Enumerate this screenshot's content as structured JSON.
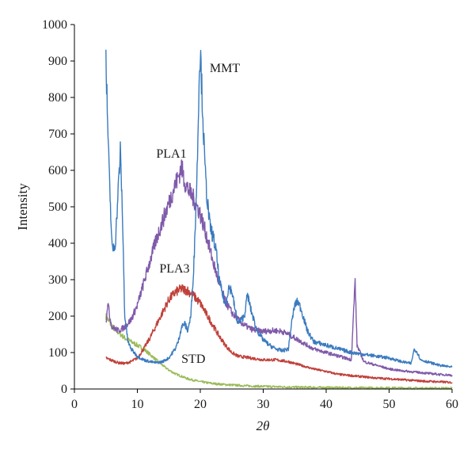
{
  "chart_data": {
    "type": "line",
    "title": "",
    "xlabel": "2θ",
    "ylabel": "Intensity",
    "xlim": [
      0,
      60
    ],
    "ylim": [
      0,
      1000
    ],
    "xticks": [
      0,
      10,
      20,
      30,
      40,
      50,
      60
    ],
    "yticks": [
      0,
      100,
      200,
      300,
      400,
      500,
      600,
      700,
      800,
      900,
      1000
    ],
    "grid": false,
    "legend": "none",
    "series": [
      {
        "name": "MMT",
        "color": "#3a7bbf",
        "points": [
          [
            5,
            900
          ],
          [
            5.5,
            600
          ],
          [
            6,
            380
          ],
          [
            6.5,
            400
          ],
          [
            7,
            560
          ],
          [
            7.3,
            650
          ],
          [
            7.6,
            500
          ],
          [
            8,
            200
          ],
          [
            8.5,
            130
          ],
          [
            9,
            110
          ],
          [
            10,
            90
          ],
          [
            11,
            80
          ],
          [
            12,
            75
          ],
          [
            13,
            72
          ],
          [
            14,
            75
          ],
          [
            15,
            85
          ],
          [
            16,
            110
          ],
          [
            16.5,
            130
          ],
          [
            17,
            170
          ],
          [
            17.5,
            180
          ],
          [
            18,
            160
          ],
          [
            18.5,
            200
          ],
          [
            19,
            350
          ],
          [
            19.5,
            600
          ],
          [
            19.8,
            850
          ],
          [
            20,
            930
          ],
          [
            20.3,
            800
          ],
          [
            20.7,
            620
          ],
          [
            21,
            540
          ],
          [
            21.5,
            450
          ],
          [
            22,
            420
          ],
          [
            22.5,
            380
          ],
          [
            23,
            300
          ],
          [
            23.5,
            260
          ],
          [
            24,
            230
          ],
          [
            24.5,
            280
          ],
          [
            25,
            270
          ],
          [
            25.5,
            220
          ],
          [
            26,
            180
          ],
          [
            27,
            200
          ],
          [
            27.5,
            260
          ],
          [
            28,
            220
          ],
          [
            29,
            160
          ],
          [
            30,
            135
          ],
          [
            31,
            120
          ],
          [
            32,
            110
          ],
          [
            33,
            105
          ],
          [
            34,
            110
          ],
          [
            34.5,
            180
          ],
          [
            35,
            230
          ],
          [
            35.5,
            240
          ],
          [
            36,
            220
          ],
          [
            37,
            160
          ],
          [
            38,
            130
          ],
          [
            40,
            120
          ],
          [
            42,
            110
          ],
          [
            44,
            100
          ],
          [
            46,
            95
          ],
          [
            48,
            90
          ],
          [
            50,
            85
          ],
          [
            52,
            75
          ],
          [
            53.5,
            70
          ],
          [
            54,
            110
          ],
          [
            54.5,
            100
          ],
          [
            55,
            80
          ],
          [
            57,
            70
          ],
          [
            58,
            65
          ],
          [
            60,
            60
          ]
        ]
      },
      {
        "name": "PLA1",
        "color": "#7f5aaa",
        "points": [
          [
            5,
            180
          ],
          [
            5.3,
            240
          ],
          [
            5.6,
            200
          ],
          [
            6,
            170
          ],
          [
            7,
            160
          ],
          [
            8,
            170
          ],
          [
            9,
            190
          ],
          [
            10,
            230
          ],
          [
            11,
            290
          ],
          [
            12,
            350
          ],
          [
            13,
            410
          ],
          [
            14,
            460
          ],
          [
            15,
            510
          ],
          [
            16,
            560
          ],
          [
            16.5,
            580
          ],
          [
            17,
            610
          ],
          [
            17.5,
            570
          ],
          [
            18,
            550
          ],
          [
            19,
            520
          ],
          [
            20,
            480
          ],
          [
            21,
            420
          ],
          [
            22,
            350
          ],
          [
            23,
            290
          ],
          [
            24,
            240
          ],
          [
            25,
            210
          ],
          [
            26,
            190
          ],
          [
            27,
            175
          ],
          [
            28,
            165
          ],
          [
            29,
            160
          ],
          [
            30,
            158
          ],
          [
            31,
            160
          ],
          [
            32,
            160
          ],
          [
            33,
            158
          ],
          [
            34,
            150
          ],
          [
            35,
            140
          ],
          [
            36,
            130
          ],
          [
            37,
            120
          ],
          [
            38,
            110
          ],
          [
            40,
            100
          ],
          [
            42,
            90
          ],
          [
            44,
            80
          ],
          [
            44.6,
            300
          ],
          [
            44.9,
            120
          ],
          [
            46,
            75
          ],
          [
            48,
            65
          ],
          [
            50,
            55
          ],
          [
            52,
            50
          ],
          [
            55,
            45
          ],
          [
            58,
            40
          ],
          [
            60,
            38
          ]
        ]
      },
      {
        "name": "PLA3",
        "color": "#c0403a",
        "points": [
          [
            5,
            85
          ],
          [
            6,
            78
          ],
          [
            7,
            72
          ],
          [
            8,
            70
          ],
          [
            9,
            75
          ],
          [
            10,
            85
          ],
          [
            11,
            110
          ],
          [
            12,
            140
          ],
          [
            13,
            175
          ],
          [
            14,
            210
          ],
          [
            15,
            245
          ],
          [
            16,
            265
          ],
          [
            17,
            275
          ],
          [
            18,
            270
          ],
          [
            19,
            255
          ],
          [
            20,
            235
          ],
          [
            21,
            205
          ],
          [
            22,
            175
          ],
          [
            23,
            145
          ],
          [
            24,
            120
          ],
          [
            25,
            100
          ],
          [
            26,
            90
          ],
          [
            28,
            85
          ],
          [
            30,
            80
          ],
          [
            32,
            80
          ],
          [
            34,
            75
          ],
          [
            36,
            65
          ],
          [
            38,
            55
          ],
          [
            40,
            48
          ],
          [
            42,
            40
          ],
          [
            45,
            35
          ],
          [
            48,
            30
          ],
          [
            50,
            28
          ],
          [
            55,
            22
          ],
          [
            60,
            18
          ]
        ]
      },
      {
        "name": "STD",
        "color": "#9bbb59",
        "points": [
          [
            5,
            200
          ],
          [
            6,
            170
          ],
          [
            7,
            155
          ],
          [
            8,
            140
          ],
          [
            9,
            130
          ],
          [
            10,
            120
          ],
          [
            11,
            110
          ],
          [
            12,
            95
          ],
          [
            13,
            80
          ],
          [
            14,
            65
          ],
          [
            15,
            52
          ],
          [
            16,
            42
          ],
          [
            17,
            35
          ],
          [
            18,
            28
          ],
          [
            19,
            24
          ],
          [
            20,
            20
          ],
          [
            22,
            15
          ],
          [
            24,
            12
          ],
          [
            26,
            10
          ],
          [
            28,
            8
          ],
          [
            30,
            7
          ],
          [
            35,
            5
          ],
          [
            40,
            4
          ],
          [
            45,
            3
          ],
          [
            50,
            3
          ],
          [
            55,
            2
          ],
          [
            60,
            2
          ]
        ]
      }
    ],
    "annotations": [
      {
        "text": "MMT",
        "x": 21.5,
        "y": 870
      },
      {
        "text": "PLA1",
        "x": 13,
        "y": 635
      },
      {
        "text": "PLA3",
        "x": 13.5,
        "y": 320
      },
      {
        "text": "STD",
        "x": 17,
        "y": 72
      }
    ]
  }
}
